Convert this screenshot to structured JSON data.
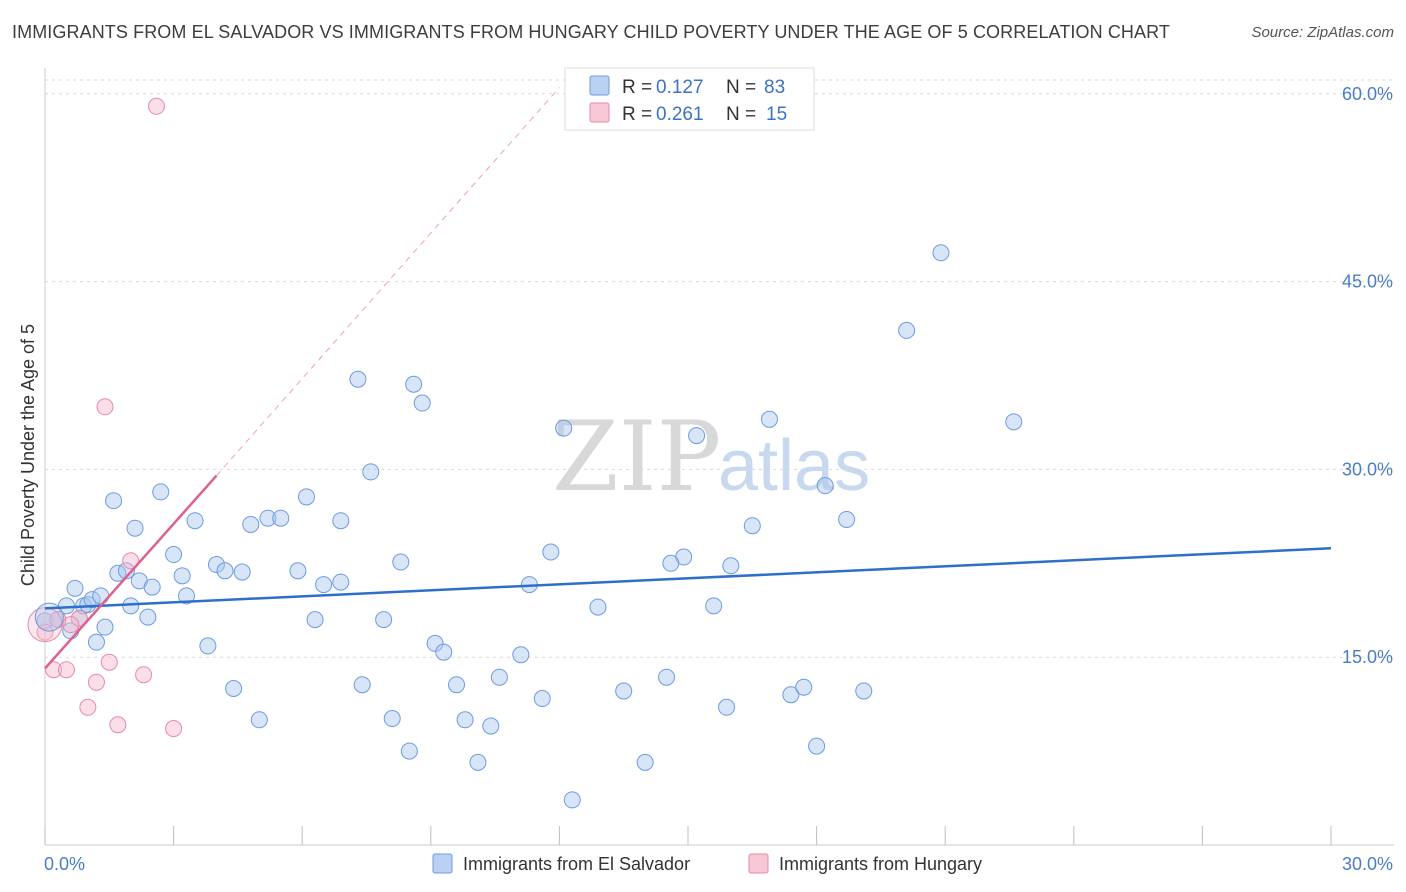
{
  "title": "IMMIGRANTS FROM EL SALVADOR VS IMMIGRANTS FROM HUNGARY CHILD POVERTY UNDER THE AGE OF 5 CORRELATION CHART",
  "source": "Source: ZipAtlas.com",
  "watermark": {
    "zip": "ZIP",
    "atlas": "atlas"
  },
  "colors": {
    "blue_fill": "#a9c6ee",
    "blue_stroke": "#6d9be0",
    "blue_line": "#2f6fc9",
    "pink_fill": "#f6b9cc",
    "pink_stroke": "#e88aa8",
    "pink_line": "#e0608c",
    "grid": "#d9d9d9",
    "tick_label": "#4a7cc7"
  },
  "legend": {
    "rows": [
      {
        "r_label": "R =",
        "r_value": "0.127",
        "n_label": "N =",
        "n_value": "83",
        "series": "blue"
      },
      {
        "r_label": "R =",
        "r_value": "0.261",
        "n_label": "N =",
        "n_value": "15",
        "series": "pink"
      }
    ]
  },
  "chart_data": {
    "type": "scatter",
    "title": "IMMIGRANTS FROM EL SALVADOR VS IMMIGRANTS FROM HUNGARY CHILD POVERTY UNDER THE AGE OF 5 CORRELATION CHART",
    "xlabel": "",
    "ylabel": "Child Poverty Under the Age of 5",
    "xlim": [
      0,
      30
    ],
    "ylim": [
      0,
      61.5
    ],
    "x_tick_labels": [
      "0.0%",
      "30.0%"
    ],
    "y_ticks": [
      15,
      30,
      45,
      60
    ],
    "y_tick_labels": [
      "15.0%",
      "30.0%",
      "45.0%",
      "60.0%"
    ],
    "grid": true,
    "series": [
      {
        "name": "Immigrants from El Salvador",
        "color": "blue",
        "trend": {
          "x": [
            0,
            30
          ],
          "y": [
            18.9,
            23.7
          ]
        },
        "points": [
          [
            0.0,
            17.9
          ],
          [
            0.3,
            18.0
          ],
          [
            0.5,
            19.1
          ],
          [
            0.6,
            17.1
          ],
          [
            0.7,
            20.5
          ],
          [
            0.8,
            18.1
          ],
          [
            0.9,
            19.1
          ],
          [
            1.0,
            19.2
          ],
          [
            1.1,
            19.6
          ],
          [
            1.2,
            16.2
          ],
          [
            1.3,
            19.9
          ],
          [
            1.4,
            17.4
          ],
          [
            1.6,
            27.5
          ],
          [
            1.7,
            21.7
          ],
          [
            1.9,
            21.9
          ],
          [
            2.0,
            19.1
          ],
          [
            2.1,
            25.3
          ],
          [
            2.2,
            21.1
          ],
          [
            2.4,
            18.2
          ],
          [
            2.5,
            20.6
          ],
          [
            2.7,
            28.2
          ],
          [
            3.0,
            23.2
          ],
          [
            3.2,
            21.5
          ],
          [
            3.3,
            19.9
          ],
          [
            3.5,
            25.9
          ],
          [
            3.8,
            15.9
          ],
          [
            4.0,
            22.4
          ],
          [
            4.2,
            21.9
          ],
          [
            4.4,
            12.5
          ],
          [
            4.6,
            21.8
          ],
          [
            4.8,
            25.6
          ],
          [
            5.0,
            10.0
          ],
          [
            5.2,
            26.1
          ],
          [
            5.5,
            26.1
          ],
          [
            5.9,
            21.9
          ],
          [
            6.1,
            27.8
          ],
          [
            6.3,
            18.0
          ],
          [
            6.5,
            20.8
          ],
          [
            6.9,
            25.9
          ],
          [
            7.3,
            37.2
          ],
          [
            7.4,
            12.8
          ],
          [
            7.6,
            29.8
          ],
          [
            7.9,
            18.0
          ],
          [
            8.1,
            10.1
          ],
          [
            8.3,
            22.6
          ],
          [
            8.5,
            7.5
          ],
          [
            8.6,
            36.8
          ],
          [
            8.8,
            35.3
          ],
          [
            9.1,
            16.1
          ],
          [
            9.3,
            15.4
          ],
          [
            9.6,
            12.8
          ],
          [
            9.8,
            10.0
          ],
          [
            10.1,
            6.6
          ],
          [
            10.4,
            9.5
          ],
          [
            10.6,
            13.4
          ],
          [
            11.1,
            15.2
          ],
          [
            11.3,
            20.8
          ],
          [
            11.6,
            11.7
          ],
          [
            11.8,
            23.4
          ],
          [
            12.1,
            33.3
          ],
          [
            12.3,
            3.6
          ],
          [
            12.9,
            19.0
          ],
          [
            13.5,
            12.3
          ],
          [
            14.0,
            6.6
          ],
          [
            14.5,
            13.4
          ],
          [
            14.9,
            23.0
          ],
          [
            15.2,
            32.7
          ],
          [
            15.9,
            11.0
          ],
          [
            16.0,
            22.3
          ],
          [
            16.5,
            25.5
          ],
          [
            16.9,
            34.0
          ],
          [
            17.4,
            12.0
          ],
          [
            17.7,
            12.6
          ],
          [
            18.0,
            7.9
          ],
          [
            18.2,
            28.7
          ],
          [
            18.7,
            26.0
          ],
          [
            19.1,
            12.3
          ],
          [
            20.1,
            41.1
          ],
          [
            20.9,
            47.3
          ],
          [
            22.6,
            33.8
          ],
          [
            14.6,
            22.5
          ],
          [
            15.6,
            19.1
          ],
          [
            6.9,
            21.0
          ]
        ]
      },
      {
        "name": "Immigrants from Hungary",
        "color": "pink",
        "trend": {
          "x": [
            0,
            4.0
          ],
          "y": [
            14.1,
            29.5
          ]
        },
        "trend_extension": {
          "x": [
            4.0,
            12.0
          ],
          "y": [
            29.5,
            60.5
          ]
        },
        "points": [
          [
            0.0,
            17.0
          ],
          [
            0.2,
            14.0
          ],
          [
            0.3,
            18.0
          ],
          [
            0.5,
            14.0
          ],
          [
            0.8,
            18.1
          ],
          [
            1.0,
            11.0
          ],
          [
            1.2,
            13.0
          ],
          [
            1.4,
            35.0
          ],
          [
            1.5,
            14.6
          ],
          [
            1.7,
            9.6
          ],
          [
            2.0,
            22.7
          ],
          [
            2.3,
            13.6
          ],
          [
            2.6,
            59.0
          ],
          [
            3.0,
            9.3
          ],
          [
            0.6,
            17.6
          ]
        ]
      }
    ]
  },
  "bottom_legend": {
    "items": [
      {
        "label": "Immigrants from El Salvador",
        "series": "blue"
      },
      {
        "label": "Immigrants from Hungary",
        "series": "pink"
      }
    ]
  }
}
